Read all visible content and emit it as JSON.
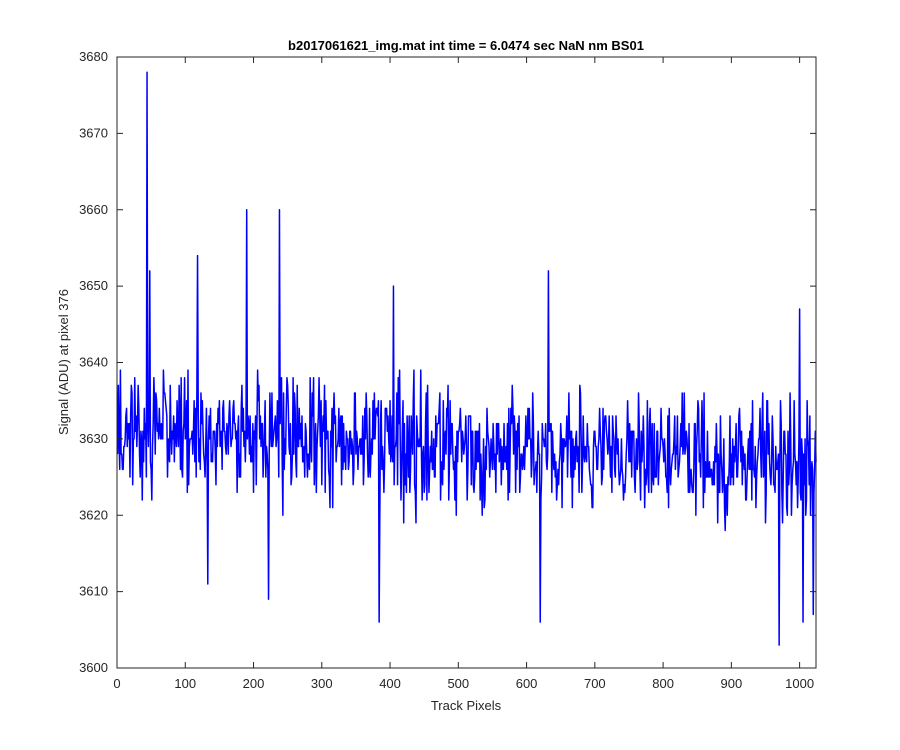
{
  "chart_data": {
    "type": "line",
    "title": "b2017061621_img.mat int time = 6.0474 sec  NaN nm BS01",
    "xlabel": "Track Pixels",
    "ylabel": "Signal (ADU) at pixel 376",
    "xlim": [
      0,
      1024
    ],
    "ylim": [
      3600,
      3680
    ],
    "x_ticks": [
      0,
      100,
      200,
      300,
      400,
      500,
      600,
      700,
      800,
      900,
      1000
    ],
    "y_ticks": [
      3600,
      3610,
      3620,
      3630,
      3640,
      3650,
      3660,
      3670,
      3680
    ],
    "x_tick_labels": [
      "0",
      "100",
      "200",
      "300",
      "400",
      "500",
      "600",
      "700",
      "800",
      "900",
      "1000"
    ],
    "y_tick_labels": [
      "3600",
      "3610",
      "3620",
      "3630",
      "3640",
      "3650",
      "3660",
      "3670",
      "3680"
    ],
    "grid": false,
    "line_color": "#0000ff",
    "series": [
      {
        "x_start": 1,
        "x_step": 1,
        "baseline_start": 3631,
        "baseline_end": 3627,
        "noise_seed": 376,
        "noise_amplitude": 11,
        "peaks": [
          {
            "x": 44,
            "y": 3678
          },
          {
            "x": 48,
            "y": 3652
          },
          {
            "x": 118,
            "y": 3654
          },
          {
            "x": 190,
            "y": 3660
          },
          {
            "x": 238,
            "y": 3660
          },
          {
            "x": 405,
            "y": 3650
          },
          {
            "x": 632,
            "y": 3652
          },
          {
            "x": 1000,
            "y": 3647
          }
        ],
        "troughs": [
          {
            "x": 133,
            "y": 3611
          },
          {
            "x": 222,
            "y": 3609
          },
          {
            "x": 384,
            "y": 3606
          },
          {
            "x": 620,
            "y": 3606
          },
          {
            "x": 970,
            "y": 3603
          },
          {
            "x": 1005,
            "y": 3606
          },
          {
            "x": 1020,
            "y": 3607
          }
        ]
      }
    ]
  }
}
